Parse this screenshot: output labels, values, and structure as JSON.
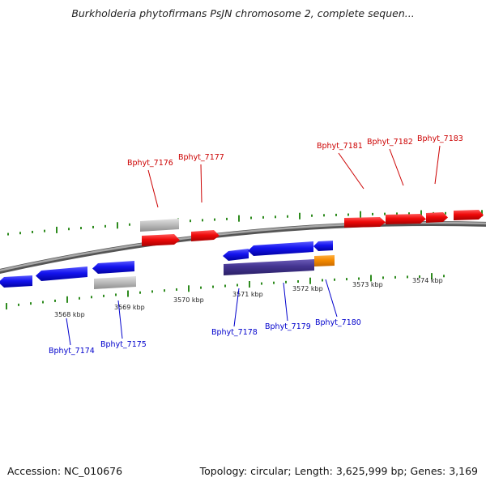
{
  "header": {
    "title": "Burkholderia phytofirmans PsJN chromosome 2, complete sequen..."
  },
  "footer": {
    "accession": "Accession: NC_010676",
    "summary": "Topology: circular; Length: 3,625,999 bp; Genes: 3,169"
  },
  "scale": {
    "ticks": [
      "3568 kbp",
      "3569 kbp",
      "3570 kbp",
      "3571 kbp",
      "3572 kbp",
      "3573 kbp",
      "3574 kbp"
    ]
  },
  "genes": {
    "forward": [
      "Bphyt_7176",
      "Bphyt_7177",
      "Bphyt_7181",
      "Bphyt_7182",
      "Bphyt_7183"
    ],
    "reverse": [
      "Bphyt_7174",
      "Bphyt_7175",
      "Bphyt_7178",
      "Bphyt_7179",
      "Bphyt_7180"
    ]
  },
  "colors": {
    "forward_gene": "#e8000b",
    "reverse_gene": "#0a14e6",
    "pseudo_gene": "#b4b4b4",
    "selected_gene": "#3e2f8a",
    "highlight_gene": "#f08c00",
    "backbone": "#8a8a8a",
    "tick": "#2e8b1e",
    "forward_label": "#cc0000",
    "reverse_label": "#0000cc"
  }
}
